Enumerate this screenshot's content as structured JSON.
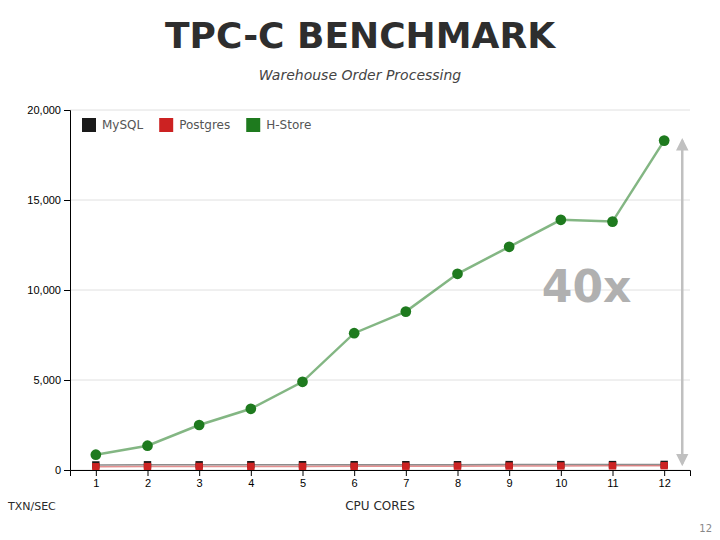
{
  "chart_data": {
    "type": "line",
    "title": "TPC-C  BENCHMARK",
    "subtitle": "Warehouse Order Processing",
    "x_label": "CPU CORES",
    "y_label": "TXN/SEC",
    "x": [
      1,
      2,
      3,
      4,
      5,
      6,
      7,
      8,
      9,
      10,
      11,
      12
    ],
    "series": [
      {
        "name": "MySQL",
        "color": "#1a1a1a",
        "marker": "square",
        "values": [
          280,
          290,
          290,
          295,
          295,
          295,
          295,
          295,
          300,
          300,
          300,
          310
        ]
      },
      {
        "name": "Postgres",
        "color": "#cc2222",
        "marker": "square",
        "values": [
          180,
          190,
          195,
          200,
          200,
          205,
          210,
          215,
          220,
          225,
          230,
          240
        ]
      },
      {
        "name": "H-Store",
        "color": "#1e7a1e",
        "marker": "circle",
        "values": [
          850,
          1350,
          2500,
          3400,
          4900,
          7600,
          8800,
          10900,
          12400,
          13900,
          13800,
          18300
        ]
      }
    ],
    "xlim": [
      0.5,
      12.5
    ],
    "xticks": [
      1,
      2,
      3,
      4,
      5,
      6,
      7,
      8,
      9,
      10,
      11,
      12
    ],
    "ylim": [
      0,
      20000
    ],
    "yticks": [
      0,
      {
        "value": 5000,
        "label": "5,000"
      },
      {
        "value": 10000,
        "label": "10,000"
      },
      {
        "value": 15000,
        "label": "15,000"
      },
      {
        "value": 20000,
        "label": "20,000"
      }
    ],
    "grid": true,
    "legend": "top-left",
    "annotations": [
      {
        "text": "40x",
        "x": 10.5,
        "y": 10000,
        "color": "#b0b0b0"
      }
    ],
    "arrow": {
      "x": 12.35,
      "from": 350,
      "to": 18300,
      "color": "#c0c0c0"
    },
    "slide_number": "12"
  }
}
